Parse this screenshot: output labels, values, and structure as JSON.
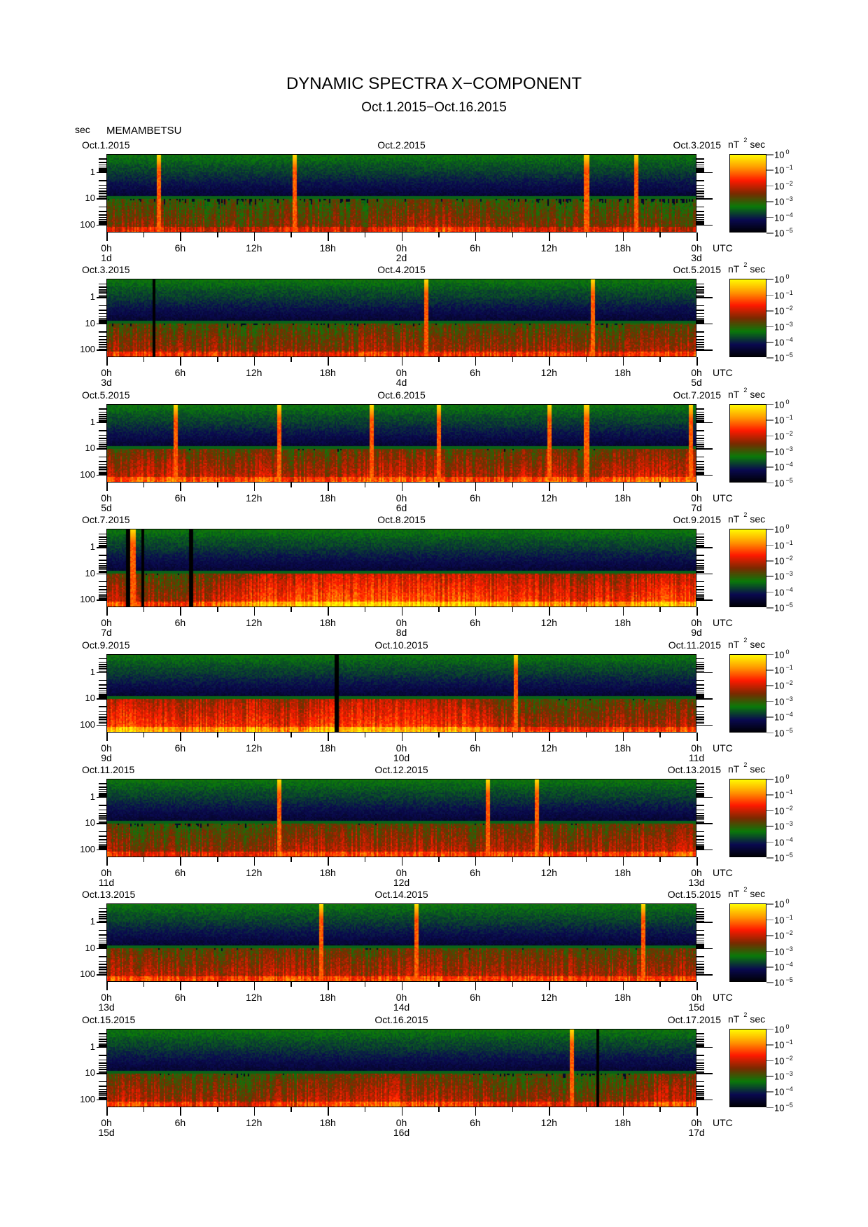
{
  "title": "DYNAMIC SPECTRA X−COMPONENT",
  "subtitle": "Oct.1.2015−Oct.16.2015",
  "y_unit": "sec",
  "station": "MEMAMBETSU",
  "chart_data": {
    "type": "heatmap",
    "xlabel": "UTC",
    "ylabel": "sec",
    "y_scale": "log",
    "y_ticks": [
      "1",
      "10",
      "100"
    ],
    "ylim_sec": [
      0.2,
      200
    ],
    "x_ticks": [
      "0h",
      "6h",
      "12h",
      "18h",
      "0h",
      "6h",
      "12h",
      "18h",
      "0h"
    ],
    "colorbar": {
      "unit": "nT",
      "unit_sup": "2",
      "unit_suffix": "sec",
      "scale": "log",
      "range": [
        1e-05,
        1
      ],
      "ticks": [
        {
          "base": "10",
          "exp": "0"
        },
        {
          "base": "10",
          "exp": "−1"
        },
        {
          "base": "10",
          "exp": "−2"
        },
        {
          "base": "10",
          "exp": "−3"
        },
        {
          "base": "10",
          "exp": "−4"
        },
        {
          "base": "10",
          "exp": "−5"
        }
      ],
      "colors": [
        "#000000",
        "#0a0a50",
        "#0a7a0a",
        "#7a2a00",
        "#ff1a00",
        "#ff9a00",
        "#ffff00"
      ]
    },
    "panels": [
      {
        "dates": [
          "Oct.1.2015",
          "Oct.2.2015",
          "Oct.3.2015"
        ],
        "days": [
          "1d",
          "2d",
          "3d"
        ],
        "activity_3h": [
          0.35,
          0.4,
          0.3,
          0.25,
          0.3,
          0.4,
          0.35,
          0.3,
          0.45,
          0.5,
          0.4,
          0.35,
          0.3,
          0.3,
          0.35,
          0.3
        ],
        "gaps_h": [],
        "spikes_h": [
          4.2,
          15.3,
          39.0,
          43.0
        ]
      },
      {
        "dates": [
          "Oct.3.2015",
          "Oct.4.2015",
          "Oct.5.2015"
        ],
        "days": [
          "3d",
          "4d",
          "5d"
        ],
        "activity_3h": [
          0.45,
          0.45,
          0.4,
          0.4,
          0.35,
          0.4,
          0.4,
          0.45,
          0.45,
          0.4,
          0.4,
          0.45,
          0.45,
          0.4,
          0.4,
          0.5
        ],
        "gaps_h": [
          3.8
        ],
        "spikes_h": [
          26.0,
          39.5
        ]
      },
      {
        "dates": [
          "Oct.5.2015",
          "Oct.6.2015",
          "Oct.7.2015"
        ],
        "days": [
          "5d",
          "6d",
          "7d"
        ],
        "activity_3h": [
          0.5,
          0.55,
          0.55,
          0.45,
          0.55,
          0.45,
          0.45,
          0.55,
          0.6,
          0.5,
          0.45,
          0.5,
          0.55,
          0.45,
          0.55,
          0.6
        ],
        "gaps_h": [],
        "spikes_h": [
          5.6,
          14.0,
          21.5,
          27.0,
          36.0,
          39.0,
          47.5
        ]
      },
      {
        "dates": [
          "Oct.7.2015",
          "Oct.8.2015",
          "Oct.9.2015"
        ],
        "days": [
          "7d",
          "8d",
          "9d"
        ],
        "activity_3h": [
          0.55,
          0.45,
          0.4,
          0.6,
          0.75,
          0.8,
          0.85,
          0.85,
          0.9,
          0.85,
          0.8,
          0.75,
          0.7,
          0.65,
          0.7,
          0.8
        ],
        "gaps_h": [
          1.7,
          2.9,
          6.8
        ],
        "spikes_h": [
          2.1
        ]
      },
      {
        "dates": [
          "Oct.9.2015",
          "Oct.10.2015",
          "Oct.11.2015"
        ],
        "days": [
          "9d",
          "10d",
          "11d"
        ],
        "activity_3h": [
          0.8,
          0.75,
          0.7,
          0.7,
          0.75,
          0.65,
          0.8,
          0.75,
          0.8,
          0.75,
          0.7,
          0.45,
          0.45,
          0.4,
          0.45,
          0.5
        ],
        "gaps_h": [
          18.7
        ],
        "spikes_h": [
          33.3
        ]
      },
      {
        "dates": [
          "Oct.11.2015",
          "Oct.12.2015",
          "Oct.13.2015"
        ],
        "days": [
          "11d",
          "12d",
          "13d"
        ],
        "activity_3h": [
          0.45,
          0.35,
          0.3,
          0.35,
          0.4,
          0.5,
          0.55,
          0.5,
          0.55,
          0.5,
          0.4,
          0.5,
          0.5,
          0.45,
          0.5,
          0.55
        ],
        "gaps_h": [],
        "spikes_h": [
          14.0,
          31.0,
          35.0
        ]
      },
      {
        "dates": [
          "Oct.13.2015",
          "Oct.14.2015",
          "Oct.15.2015"
        ],
        "days": [
          "13d",
          "14d",
          "15d"
        ],
        "activity_3h": [
          0.55,
          0.5,
          0.45,
          0.45,
          0.5,
          0.55,
          0.5,
          0.45,
          0.55,
          0.5,
          0.45,
          0.5,
          0.5,
          0.45,
          0.45,
          0.5
        ],
        "gaps_h": [],
        "spikes_h": [
          17.4,
          25.2,
          43.6
        ]
      },
      {
        "dates": [
          "Oct.15.2015",
          "Oct.16.2015",
          "Oct.17.2015"
        ],
        "days": [
          "15d",
          "16d",
          "17d"
        ],
        "activity_3h": [
          0.5,
          0.5,
          0.45,
          0.4,
          0.35,
          0.45,
          0.5,
          0.6,
          0.55,
          0.5,
          0.45,
          0.4,
          0.4,
          0.3,
          0.35,
          0.55
        ],
        "gaps_h": [
          39.9
        ],
        "spikes_h": [
          37.8
        ]
      }
    ]
  }
}
